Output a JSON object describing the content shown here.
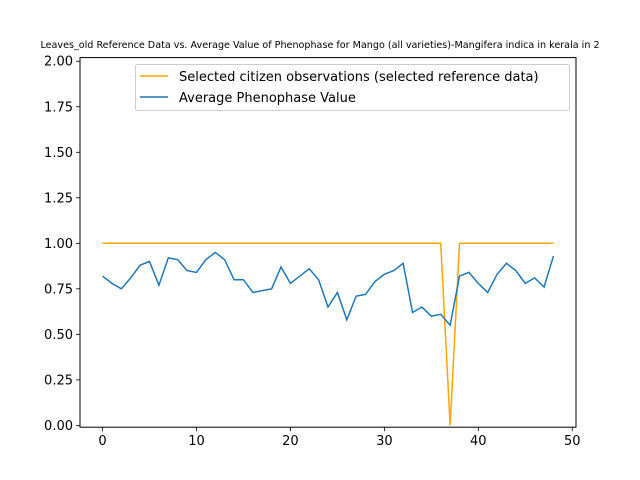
{
  "chart_data": {
    "type": "line",
    "title": "Leaves_old Reference Data vs. Average Value of Phenophase for Mango (all varieties)-Mangifera indica in kerala in 2",
    "xlabel": "",
    "ylabel": "",
    "xlim": [
      -2.4,
      50.4
    ],
    "ylim": [
      -0.01,
      2.02
    ],
    "xticks": [
      0,
      10,
      20,
      30,
      40,
      50
    ],
    "yticks": [
      0.0,
      0.25,
      0.5,
      0.75,
      1.0,
      1.25,
      1.5,
      1.75,
      2.0
    ],
    "ytick_labels": [
      "0.00",
      "0.25",
      "0.50",
      "0.75",
      "1.00",
      "1.25",
      "1.50",
      "1.75",
      "2.00"
    ],
    "grid": false,
    "legend_position": "upper-right",
    "series": [
      {
        "name": "Selected citizen observations (selected reference data)",
        "color": "#ffa500",
        "x": [
          0,
          1,
          2,
          3,
          4,
          5,
          6,
          7,
          8,
          9,
          10,
          11,
          12,
          13,
          14,
          15,
          16,
          17,
          18,
          19,
          20,
          21,
          22,
          23,
          24,
          25,
          26,
          27,
          28,
          29,
          30,
          31,
          32,
          33,
          34,
          35,
          36,
          37,
          38,
          39,
          40,
          41,
          42,
          43,
          44,
          45,
          46,
          47,
          48
        ],
        "y": [
          1,
          1,
          1,
          1,
          1,
          1,
          1,
          1,
          1,
          1,
          1,
          1,
          1,
          1,
          1,
          1,
          1,
          1,
          1,
          1,
          1,
          1,
          1,
          1,
          1,
          1,
          1,
          1,
          1,
          1,
          1,
          1,
          1,
          1,
          1,
          1,
          1,
          0,
          1,
          1,
          1,
          1,
          1,
          1,
          1,
          1,
          1,
          1,
          1
        ]
      },
      {
        "name": "Average Phenophase Value",
        "color": "#1f77b4",
        "x": [
          0,
          1,
          2,
          3,
          4,
          5,
          6,
          7,
          8,
          9,
          10,
          11,
          12,
          13,
          14,
          15,
          16,
          17,
          18,
          19,
          20,
          21,
          22,
          23,
          24,
          25,
          26,
          27,
          28,
          29,
          30,
          31,
          32,
          33,
          34,
          35,
          36,
          37,
          38,
          39,
          40,
          41,
          42,
          43,
          44,
          45,
          46,
          47,
          48
        ],
        "y": [
          0.82,
          0.78,
          0.75,
          0.81,
          0.88,
          0.9,
          0.77,
          0.92,
          0.91,
          0.85,
          0.84,
          0.91,
          0.95,
          0.91,
          0.8,
          0.8,
          0.73,
          0.74,
          0.75,
          0.87,
          0.78,
          0.82,
          0.86,
          0.8,
          0.65,
          0.73,
          0.58,
          0.71,
          0.72,
          0.79,
          0.83,
          0.85,
          0.89,
          0.62,
          0.65,
          0.6,
          0.61,
          0.55,
          0.82,
          0.84,
          0.78,
          0.73,
          0.83,
          0.89,
          0.85,
          0.78,
          0.81,
          0.76,
          0.93
        ]
      }
    ]
  }
}
